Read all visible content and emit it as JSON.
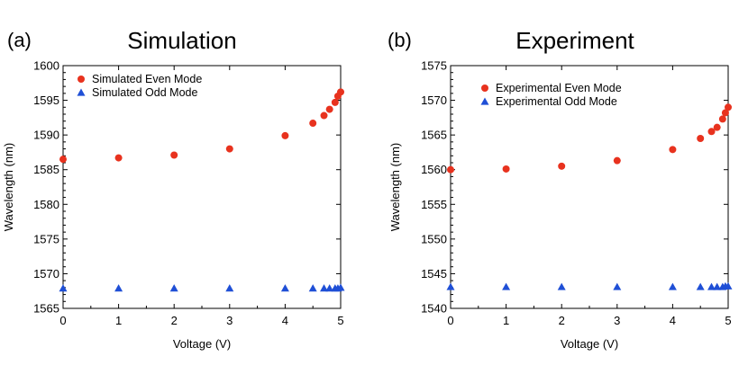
{
  "chart_data": [
    {
      "type": "scatter",
      "panel_label": "(a)",
      "title": "Simulation",
      "xlabel": "Voltage (V)",
      "ylabel": "Wavelength (nm)",
      "xlim": [
        0,
        5
      ],
      "ylim": [
        1565,
        1600
      ],
      "xticks": [
        "0",
        "1",
        "2",
        "3",
        "4",
        "5"
      ],
      "yticks": [
        "1565",
        "1570",
        "1575",
        "1580",
        "1585",
        "1590",
        "1595",
        "1600"
      ],
      "grid": false,
      "legend_position": "top-left",
      "series": [
        {
          "name": "Simulated Even Mode",
          "marker": "circle",
          "color": "#e8321e",
          "x": [
            0,
            1,
            2,
            3,
            4,
            4.5,
            4.7,
            4.8,
            4.9,
            4.95,
            5.0
          ],
          "y": [
            1586.5,
            1586.7,
            1587.1,
            1588.0,
            1589.9,
            1591.7,
            1592.8,
            1593.7,
            1594.7,
            1595.6,
            1596.2
          ]
        },
        {
          "name": "Simulated Odd Mode",
          "marker": "triangle",
          "color": "#1f4fd6",
          "x": [
            0,
            1,
            2,
            3,
            4,
            4.5,
            4.7,
            4.8,
            4.9,
            4.95,
            5.0
          ],
          "y": [
            1567.9,
            1567.9,
            1567.9,
            1567.9,
            1567.9,
            1567.9,
            1567.9,
            1567.9,
            1567.9,
            1567.9,
            1568.0
          ]
        }
      ]
    },
    {
      "type": "scatter",
      "panel_label": "(b)",
      "title": "Experiment",
      "xlabel": "Voltage (V)",
      "ylabel": "Wavelength (nm)",
      "xlim": [
        0,
        5
      ],
      "ylim": [
        1540,
        1575
      ],
      "xticks": [
        "0",
        "1",
        "2",
        "3",
        "4",
        "5"
      ],
      "yticks": [
        "1540",
        "1545",
        "1550",
        "1555",
        "1560",
        "1565",
        "1570",
        "1575"
      ],
      "grid": false,
      "legend_position": "top-center",
      "series": [
        {
          "name": "Experimental Even Mode",
          "marker": "circle",
          "color": "#e8321e",
          "x": [
            0,
            1,
            2,
            3,
            4,
            4.5,
            4.7,
            4.8,
            4.9,
            4.95,
            5.0
          ],
          "y": [
            1560.0,
            1560.1,
            1560.5,
            1561.3,
            1562.9,
            1564.5,
            1565.5,
            1566.1,
            1567.3,
            1568.2,
            1569.0
          ]
        },
        {
          "name": "Experimental Odd Mode",
          "marker": "triangle",
          "color": "#1f4fd6",
          "x": [
            0,
            1,
            2,
            3,
            4,
            4.5,
            4.7,
            4.8,
            4.9,
            4.95,
            5.0
          ],
          "y": [
            1543.1,
            1543.1,
            1543.1,
            1543.1,
            1543.1,
            1543.1,
            1543.1,
            1543.1,
            1543.1,
            1543.2,
            1543.2
          ]
        }
      ]
    }
  ]
}
